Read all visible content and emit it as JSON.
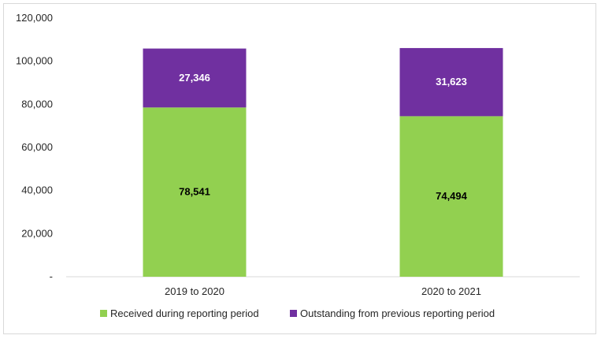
{
  "chart_data": {
    "type": "bar",
    "stacked": true,
    "title": "",
    "xlabel": "",
    "ylabel": "",
    "categories": [
      "2019 to 2020",
      "2020 to 2021"
    ],
    "series": [
      {
        "name": "Received during reporting period",
        "values": [
          78541,
          74494
        ],
        "color": "#92d050",
        "label_color": "#000000"
      },
      {
        "name": "Outstanding from previous reporting period",
        "values": [
          27346,
          31623
        ],
        "color": "#7030a0",
        "label_color": "#ffffff"
      }
    ],
    "value_labels": [
      [
        "78,541",
        "74,494"
      ],
      [
        "27,346",
        "31,623"
      ]
    ],
    "ylim": [
      0,
      120000
    ],
    "yticks": [
      0,
      20000,
      40000,
      60000,
      80000,
      100000,
      120000
    ],
    "ytick_labels": [
      "-",
      "20,000",
      "40,000",
      "60,000",
      "80,000",
      "100,000",
      "120,000"
    ],
    "grid": false,
    "legend_position": "bottom"
  }
}
